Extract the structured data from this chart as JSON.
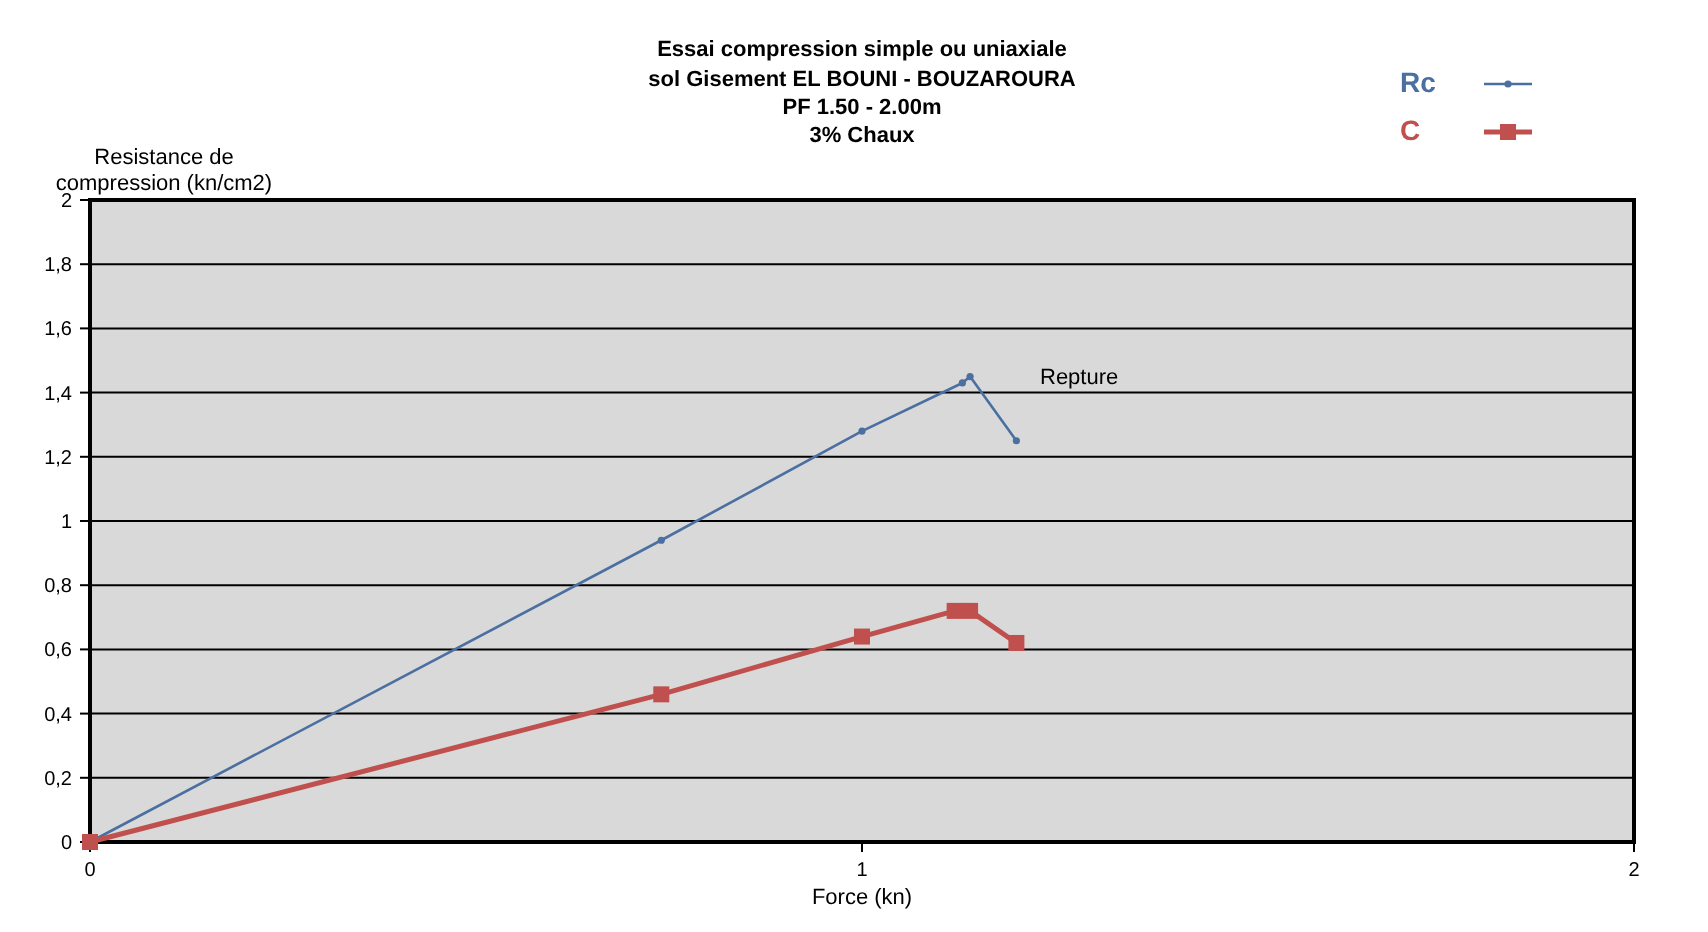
{
  "chart_data": {
    "type": "line",
    "title": "Essai compression simple ou uniaxiale",
    "subtitle": "sol Gisement EL BOUNI - BOUZAROURA\nPF 1.50 - 2.00m\n3% Chaux",
    "xlabel": "Force  (kn)",
    "ylabel": "Resistance de\ncompression (kn/cm2)",
    "xlim": [
      0,
      2
    ],
    "xticks": [
      0,
      1,
      2
    ],
    "ylim": [
      0,
      2
    ],
    "yticks": [
      0,
      {
        "value": 0.2,
        "label": "0,2"
      },
      {
        "value": 0.4,
        "label": "0,4"
      },
      {
        "value": 0.6,
        "label": "0,6"
      },
      {
        "value": 0.8,
        "label": "0,8"
      },
      1,
      {
        "value": 1.2,
        "label": "1,2"
      },
      {
        "value": 1.4,
        "label": "1,4"
      },
      {
        "value": 1.6,
        "label": "1,6"
      },
      {
        "value": 1.8,
        "label": "1,8"
      },
      2
    ],
    "grid": "y",
    "legend": "top right",
    "line_style": "solid",
    "series": [
      {
        "name": "Rc",
        "color": "#4a6fa0",
        "marker": "circle",
        "x": [
          0,
          0.74,
          1.0,
          1.13,
          1.14,
          1.2
        ],
        "values": [
          0,
          0.94,
          1.28,
          1.43,
          1.45,
          1.25
        ]
      },
      {
        "name": "C",
        "color": "#c0504d",
        "marker": "square",
        "x": [
          0,
          0.74,
          1.0,
          1.12,
          1.14,
          1.2
        ],
        "values": [
          0,
          0.46,
          0.64,
          0.72,
          0.72,
          0.62
        ]
      }
    ],
    "annotations": [
      "Repture"
    ]
  }
}
